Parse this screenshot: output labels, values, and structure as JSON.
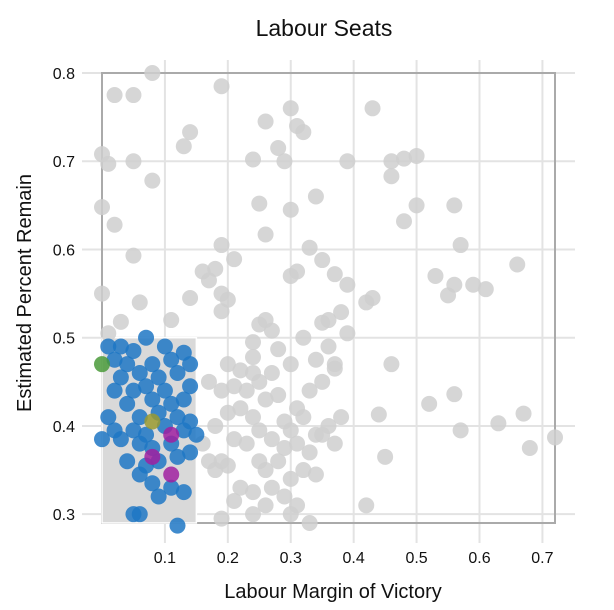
{
  "chart_data": {
    "type": "scatter",
    "title": "Labour Seats",
    "xlabel": "Labour Margin of Victory",
    "ylabel": "Estimated Percent Remain",
    "xlim": [
      0.0,
      0.74
    ],
    "ylim": [
      0.28,
      0.81
    ],
    "x_ticks": [
      "0.1",
      "0.2",
      "0.3",
      "0.4",
      "0.5",
      "0.6",
      "0.7"
    ],
    "y_ticks": [
      "0.3",
      "0.4",
      "0.5",
      "0.6",
      "0.7",
      "0.8"
    ],
    "x_tick_values": [
      0.1,
      0.2,
      0.3,
      0.4,
      0.5,
      0.6,
      0.7
    ],
    "y_tick_values": [
      0.3,
      0.4,
      0.5,
      0.6,
      0.7,
      0.8
    ],
    "grid": true,
    "frame_region": {
      "x": [
        0.0,
        0.72
      ],
      "y": [
        0.29,
        0.8
      ]
    },
    "brush_selection": {
      "x": [
        0.0,
        0.15
      ],
      "y": [
        0.29,
        0.5
      ]
    },
    "colors": {
      "unselected": "#cfcfcf",
      "selected_blue": "#1f77c4",
      "selected_green": "#4a9a3a",
      "selected_olive": "#9a9a30",
      "selected_purple": "#a020a0",
      "grid": "#e3e3e3",
      "frame": "#aaaaaa",
      "brush": "#d9d9d9"
    },
    "series": [
      {
        "color_key": "unselected",
        "points": [
          [
            0.08,
            0.8
          ],
          [
            0.02,
            0.775
          ],
          [
            0.05,
            0.775
          ],
          [
            0.19,
            0.785
          ],
          [
            0.3,
            0.76
          ],
          [
            0.43,
            0.76
          ],
          [
            0.14,
            0.733
          ],
          [
            0.31,
            0.74
          ],
          [
            0.32,
            0.733
          ],
          [
            0.26,
            0.745
          ],
          [
            0.13,
            0.717
          ],
          [
            0.28,
            0.715
          ],
          [
            0.0,
            0.708
          ],
          [
            0.05,
            0.7
          ],
          [
            0.01,
            0.697
          ],
          [
            0.29,
            0.7
          ],
          [
            0.39,
            0.7
          ],
          [
            0.46,
            0.7
          ],
          [
            0.48,
            0.703
          ],
          [
            0.5,
            0.706
          ],
          [
            0.08,
            0.678
          ],
          [
            0.46,
            0.683
          ],
          [
            0.24,
            0.702
          ],
          [
            0.25,
            0.652
          ],
          [
            0.34,
            0.66
          ],
          [
            0.3,
            0.645
          ],
          [
            0.0,
            0.648
          ],
          [
            0.48,
            0.632
          ],
          [
            0.5,
            0.65
          ],
          [
            0.56,
            0.65
          ],
          [
            0.02,
            0.628
          ],
          [
            0.26,
            0.617
          ],
          [
            0.19,
            0.605
          ],
          [
            0.57,
            0.605
          ],
          [
            0.33,
            0.602
          ],
          [
            0.05,
            0.593
          ],
          [
            0.35,
            0.588
          ],
          [
            0.21,
            0.589
          ],
          [
            0.31,
            0.575
          ],
          [
            0.16,
            0.575
          ],
          [
            0.37,
            0.572
          ],
          [
            0.18,
            0.578
          ],
          [
            0.53,
            0.57
          ],
          [
            0.56,
            0.56
          ],
          [
            0.59,
            0.56
          ],
          [
            0.61,
            0.555
          ],
          [
            0.66,
            0.583
          ],
          [
            0.3,
            0.57
          ],
          [
            0.17,
            0.565
          ],
          [
            0.39,
            0.56
          ],
          [
            0.55,
            0.548
          ],
          [
            0.19,
            0.55
          ],
          [
            0.0,
            0.55
          ],
          [
            0.43,
            0.545
          ],
          [
            0.42,
            0.54
          ],
          [
            0.14,
            0.545
          ],
          [
            0.2,
            0.543
          ],
          [
            0.06,
            0.54
          ],
          [
            0.38,
            0.529
          ],
          [
            0.19,
            0.53
          ],
          [
            0.36,
            0.52
          ],
          [
            0.26,
            0.52
          ],
          [
            0.35,
            0.517
          ],
          [
            0.03,
            0.518
          ],
          [
            0.11,
            0.52
          ],
          [
            0.25,
            0.515
          ],
          [
            0.39,
            0.505
          ],
          [
            0.27,
            0.508
          ],
          [
            0.01,
            0.505
          ],
          [
            0.32,
            0.5
          ],
          [
            0.36,
            0.49
          ],
          [
            0.24,
            0.495
          ],
          [
            0.28,
            0.487
          ],
          [
            0.3,
            0.47
          ],
          [
            0.34,
            0.475
          ],
          [
            0.37,
            0.47
          ],
          [
            0.46,
            0.47
          ],
          [
            0.24,
            0.478
          ],
          [
            0.22,
            0.463
          ],
          [
            0.17,
            0.45
          ],
          [
            0.19,
            0.44
          ],
          [
            0.21,
            0.445
          ],
          [
            0.23,
            0.44
          ],
          [
            0.25,
            0.45
          ],
          [
            0.27,
            0.46
          ],
          [
            0.28,
            0.435
          ],
          [
            0.26,
            0.43
          ],
          [
            0.33,
            0.44
          ],
          [
            0.35,
            0.45
          ],
          [
            0.31,
            0.42
          ],
          [
            0.32,
            0.41
          ],
          [
            0.29,
            0.405
          ],
          [
            0.3,
            0.395
          ],
          [
            0.34,
            0.39
          ],
          [
            0.36,
            0.4
          ],
          [
            0.38,
            0.41
          ],
          [
            0.44,
            0.413
          ],
          [
            0.52,
            0.425
          ],
          [
            0.56,
            0.436
          ],
          [
            0.57,
            0.395
          ],
          [
            0.63,
            0.403
          ],
          [
            0.67,
            0.414
          ],
          [
            0.68,
            0.375
          ],
          [
            0.72,
            0.387
          ],
          [
            0.2,
            0.415
          ],
          [
            0.22,
            0.42
          ],
          [
            0.24,
            0.41
          ],
          [
            0.18,
            0.4
          ],
          [
            0.21,
            0.385
          ],
          [
            0.23,
            0.38
          ],
          [
            0.25,
            0.395
          ],
          [
            0.27,
            0.385
          ],
          [
            0.29,
            0.375
          ],
          [
            0.31,
            0.38
          ],
          [
            0.33,
            0.37
          ],
          [
            0.35,
            0.39
          ],
          [
            0.37,
            0.38
          ],
          [
            0.16,
            0.38
          ],
          [
            0.17,
            0.36
          ],
          [
            0.19,
            0.36
          ],
          [
            0.18,
            0.35
          ],
          [
            0.2,
            0.355
          ],
          [
            0.25,
            0.36
          ],
          [
            0.26,
            0.35
          ],
          [
            0.28,
            0.36
          ],
          [
            0.3,
            0.34
          ],
          [
            0.32,
            0.35
          ],
          [
            0.34,
            0.345
          ],
          [
            0.22,
            0.33
          ],
          [
            0.24,
            0.325
          ],
          [
            0.27,
            0.33
          ],
          [
            0.29,
            0.32
          ],
          [
            0.31,
            0.31
          ],
          [
            0.26,
            0.31
          ],
          [
            0.3,
            0.3
          ],
          [
            0.33,
            0.29
          ],
          [
            0.21,
            0.315
          ],
          [
            0.24,
            0.3
          ],
          [
            0.19,
            0.295
          ],
          [
            0.45,
            0.365
          ],
          [
            0.42,
            0.31
          ],
          [
            0.37,
            0.465
          ],
          [
            0.24,
            0.46
          ],
          [
            0.2,
            0.47
          ]
        ]
      },
      {
        "color_key": "selected_blue",
        "points": [
          [
            0.07,
            0.5
          ],
          [
            0.01,
            0.49
          ],
          [
            0.03,
            0.49
          ],
          [
            0.05,
            0.485
          ],
          [
            0.1,
            0.49
          ],
          [
            0.13,
            0.483
          ],
          [
            0.02,
            0.475
          ],
          [
            0.04,
            0.47
          ],
          [
            0.08,
            0.47
          ],
          [
            0.11,
            0.475
          ],
          [
            0.14,
            0.47
          ],
          [
            0.03,
            0.455
          ],
          [
            0.06,
            0.46
          ],
          [
            0.09,
            0.455
          ],
          [
            0.12,
            0.46
          ],
          [
            0.02,
            0.44
          ],
          [
            0.05,
            0.44
          ],
          [
            0.07,
            0.445
          ],
          [
            0.1,
            0.44
          ],
          [
            0.14,
            0.445
          ],
          [
            0.04,
            0.425
          ],
          [
            0.08,
            0.43
          ],
          [
            0.11,
            0.425
          ],
          [
            0.13,
            0.43
          ],
          [
            0.01,
            0.41
          ],
          [
            0.06,
            0.41
          ],
          [
            0.09,
            0.415
          ],
          [
            0.12,
            0.41
          ],
          [
            0.14,
            0.405
          ],
          [
            0.02,
            0.395
          ],
          [
            0.05,
            0.395
          ],
          [
            0.07,
            0.39
          ],
          [
            0.1,
            0.4
          ],
          [
            0.13,
            0.395
          ],
          [
            0.15,
            0.39
          ],
          [
            0.0,
            0.385
          ],
          [
            0.03,
            0.385
          ],
          [
            0.06,
            0.38
          ],
          [
            0.08,
            0.375
          ],
          [
            0.11,
            0.38
          ],
          [
            0.14,
            0.37
          ],
          [
            0.04,
            0.36
          ],
          [
            0.07,
            0.355
          ],
          [
            0.09,
            0.36
          ],
          [
            0.12,
            0.365
          ],
          [
            0.06,
            0.345
          ],
          [
            0.08,
            0.335
          ],
          [
            0.11,
            0.33
          ],
          [
            0.13,
            0.325
          ],
          [
            0.09,
            0.32
          ],
          [
            0.05,
            0.3
          ],
          [
            0.06,
            0.3
          ],
          [
            0.12,
            0.287
          ]
        ]
      },
      {
        "color_key": "selected_green",
        "points": [
          [
            0.0,
            0.47
          ]
        ]
      },
      {
        "color_key": "selected_olive",
        "points": [
          [
            0.08,
            0.405
          ]
        ]
      },
      {
        "color_key": "selected_purple",
        "points": [
          [
            0.11,
            0.39
          ],
          [
            0.08,
            0.365
          ],
          [
            0.11,
            0.345
          ]
        ]
      }
    ]
  }
}
